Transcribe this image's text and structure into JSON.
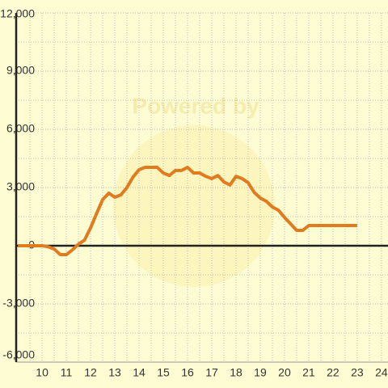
{
  "chart_data": {
    "type": "line",
    "watermark": "Powered by",
    "x": [
      9,
      10,
      10.25,
      10.5,
      10.75,
      11,
      11.25,
      11.5,
      11.75,
      12,
      12.25,
      12.5,
      12.75,
      13,
      13.25,
      13.5,
      13.75,
      14,
      14.25,
      14.5,
      14.75,
      15,
      15.25,
      15.5,
      15.75,
      16,
      16.25,
      16.5,
      16.75,
      17,
      17.25,
      17.5,
      17.75,
      18,
      18.25,
      18.5,
      18.75,
      19,
      19.25,
      19.5,
      19.75,
      20,
      20.25,
      20.5,
      20.75,
      21,
      21.25,
      21.5,
      21.75,
      22,
      22.25,
      22.5,
      22.75,
      23
    ],
    "series": [
      {
        "color": "#e07b20",
        "values": [
          0,
          0,
          -50,
          -170,
          -460,
          -460,
          -210,
          80,
          290,
          920,
          1670,
          2380,
          2710,
          2500,
          2620,
          3000,
          3540,
          3920,
          4040,
          4040,
          4040,
          3750,
          3620,
          3880,
          3880,
          4040,
          3750,
          3750,
          3580,
          3460,
          3620,
          3290,
          3130,
          3580,
          3460,
          3250,
          2750,
          2460,
          2290,
          2000,
          1830,
          1460,
          1130,
          790,
          790,
          1040,
          1040,
          1040,
          1040,
          1040,
          1040,
          1040,
          1040,
          1040
        ]
      }
    ],
    "xlim": [
      8.93,
      24.27
    ],
    "xticks": [
      10,
      11,
      12,
      13,
      14,
      15,
      16,
      17,
      18,
      19,
      20,
      21,
      22,
      23,
      24
    ],
    "ylim": [
      -6000,
      12000
    ],
    "yticks": [
      {
        "value": -6000,
        "label": "-6,000"
      },
      {
        "value": -3000,
        "label": "-3,000"
      },
      0,
      {
        "value": 3000,
        "label": "3,000"
      },
      {
        "value": 6000,
        "label": "6,000"
      },
      {
        "value": 9000,
        "label": "9,000"
      },
      {
        "value": 12000,
        "label": "12,000"
      }
    ],
    "grid": true
  }
}
